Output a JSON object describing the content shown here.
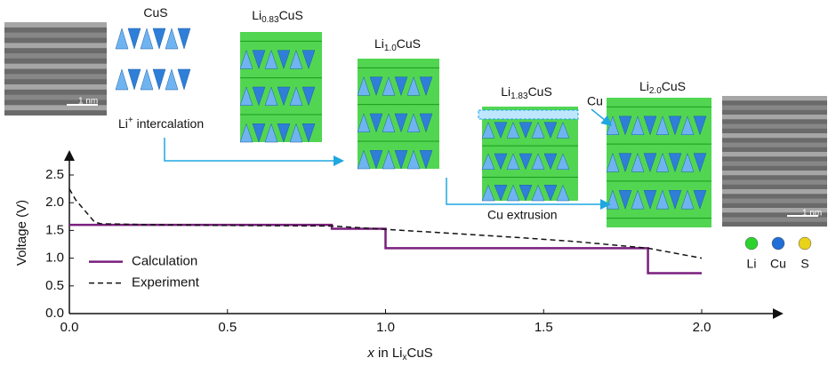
{
  "chart_data": {
    "type": "line",
    "xlabel": {
      "italic": "x",
      "text": " in Li",
      "sub": "x",
      "rest": "CuS"
    },
    "ylabel": "Voltage (V)",
    "xlim": [
      0,
      2.25
    ],
    "ylim": [
      0,
      2.9
    ],
    "xticks": [
      {
        "value": 0,
        "label": "0.0"
      },
      0.5,
      {
        "value": 1,
        "label": "1.0"
      },
      1.5,
      {
        "value": 2,
        "label": "2.0"
      }
    ],
    "yticks": [
      {
        "value": 0,
        "label": "0.0"
      },
      0.5,
      {
        "value": 1,
        "label": "1.0"
      },
      1.5,
      {
        "value": 2,
        "label": "2.0"
      },
      2.5
    ],
    "legend": "lower left",
    "series": [
      {
        "name": "Calculation",
        "color": "#7a1f7e",
        "dash": false,
        "x": [
          0,
          0.83,
          0.83,
          1.0,
          1.0,
          1.83,
          1.83,
          2.0
        ],
        "values": [
          1.6,
          1.6,
          1.53,
          1.53,
          1.18,
          1.18,
          0.73,
          0.73
        ]
      },
      {
        "name": "Experiment",
        "color": "#111111",
        "dash": true,
        "x": [
          0,
          0.02,
          0.05,
          0.08,
          0.1,
          0.3,
          0.5,
          0.83,
          1.0,
          1.2,
          1.4,
          1.6,
          1.83,
          2.0
        ],
        "values": [
          2.25,
          2.05,
          1.85,
          1.65,
          1.62,
          1.6,
          1.59,
          1.58,
          1.52,
          1.45,
          1.38,
          1.3,
          1.18,
          1.0
        ]
      }
    ]
  },
  "structures": [
    {
      "base": "CuS",
      "sub": "",
      "rest": ""
    },
    {
      "base": "Li",
      "sub": "0.83",
      "rest": "CuS"
    },
    {
      "base": "Li",
      "sub": "1.0",
      "rest": "CuS"
    },
    {
      "base": "Li",
      "sub": "1.83",
      "rest": "CuS"
    },
    {
      "base": "Li",
      "sub": "2.0",
      "rest": "CuS"
    }
  ],
  "intercalation": {
    "base": "Li",
    "sup": "+",
    "rest": " intercalation"
  },
  "extrusion": "Cu extrusion",
  "cu_label": "Cu",
  "scale_bar": "1 nm",
  "atoms": [
    "Li",
    "Cu",
    "S"
  ]
}
